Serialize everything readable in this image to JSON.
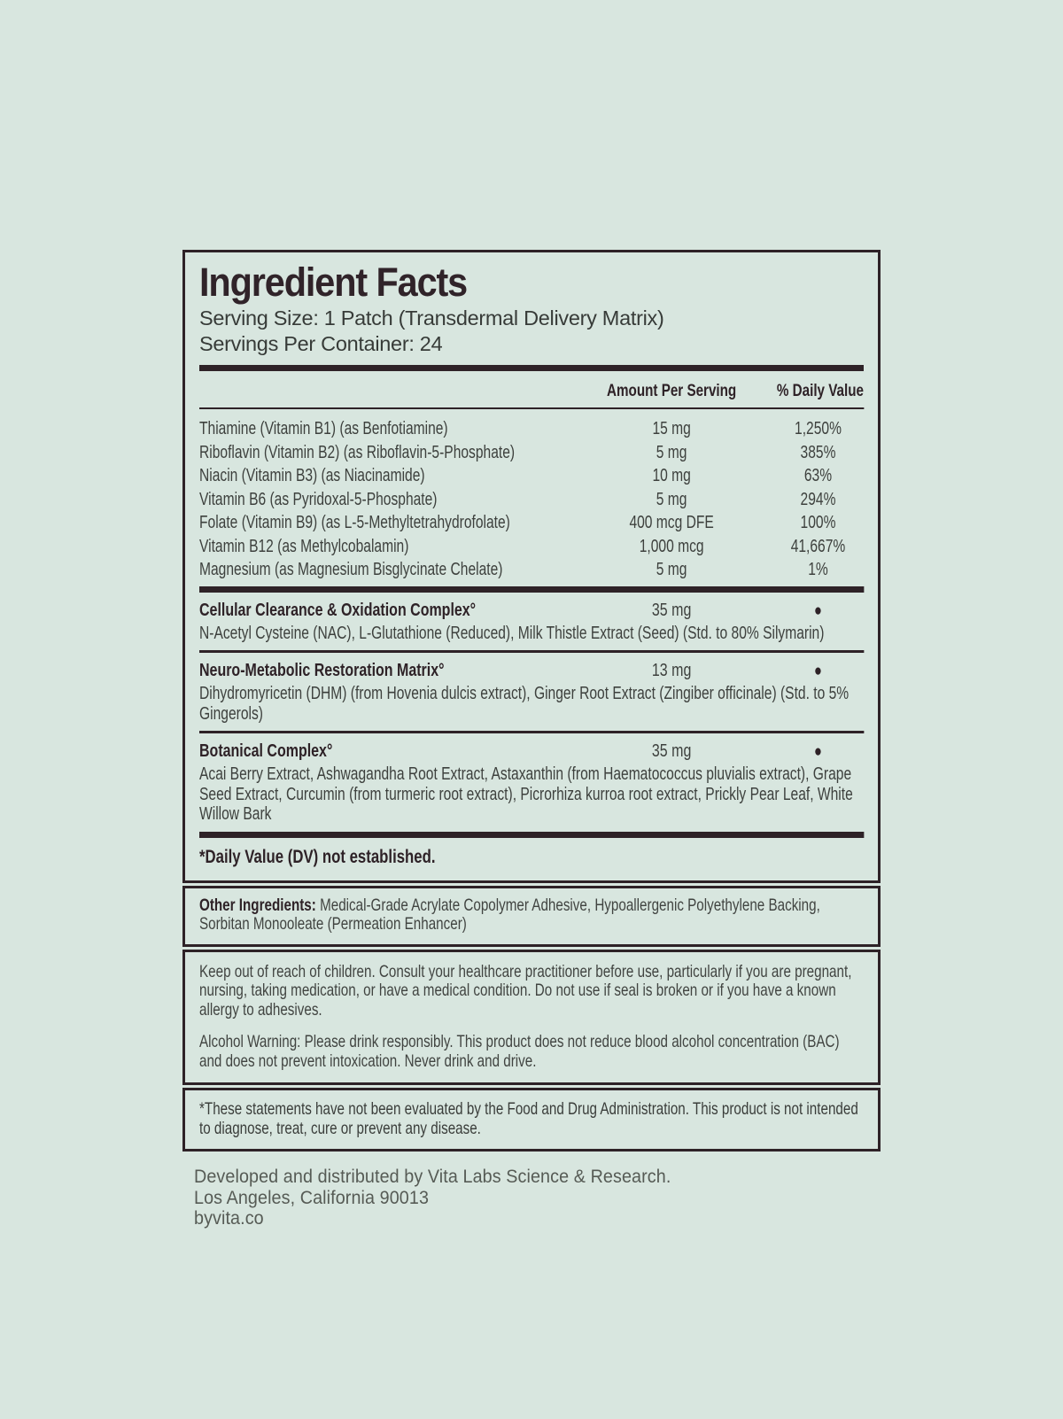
{
  "label": {
    "title": "Ingredient Facts",
    "serving_size": "Serving Size: 1 Patch (Transdermal Delivery Matrix)",
    "servings_per_container": "Servings Per Container: 24",
    "columns": {
      "amount": "Amount Per Serving",
      "dv": "% Daily Value"
    },
    "nutrients": [
      {
        "name": "Thiamine (Vitamin B1) (as Benfotiamine)",
        "amount": "15 mg",
        "dv": "1,250%"
      },
      {
        "name": "Riboflavin (Vitamin B2) (as Riboflavin-5-Phosphate)",
        "amount": "5 mg",
        "dv": "385%"
      },
      {
        "name": "Niacin (Vitamin B3) (as Niacinamide)",
        "amount": "10 mg",
        "dv": "63%"
      },
      {
        "name": "Vitamin B6 (as Pyridoxal-5-Phosphate)",
        "amount": "5 mg",
        "dv": "294%"
      },
      {
        "name": "Folate (Vitamin B9) (as L-5-Methyltetrahydrofolate)",
        "amount": "400 mcg DFE",
        "dv": "100%"
      },
      {
        "name": "Vitamin B12 (as Methylcobalamin)",
        "amount": "1,000 mcg",
        "dv": "41,667%"
      },
      {
        "name": "Magnesium (as Magnesium Bisglycinate Chelate)",
        "amount": "5 mg",
        "dv": "1%"
      }
    ],
    "complexes": [
      {
        "name": "Cellular Clearance & Oxidation Complex°",
        "amount": "35 mg",
        "dv_symbol": "●",
        "ingredients": "N-Acetyl Cysteine (NAC), L-Glutathione (Reduced), Milk Thistle Extract (Seed) (Std. to 80% Silymarin)"
      },
      {
        "name": "Neuro-Metabolic Restoration Matrix°",
        "amount": "13 mg",
        "dv_symbol": "●",
        "ingredients": "Dihydromyricetin (DHM) (from Hovenia dulcis extract), Ginger Root Extract (Zingiber officinale) (Std. to 5% Gingerols)"
      },
      {
        "name": "Botanical Complex°",
        "amount": "35 mg",
        "dv_symbol": "●",
        "ingredients": "Acai Berry Extract, Ashwagandha Root Extract, Astaxanthin (from Haematococcus pluvialis extract), Grape Seed Extract, Curcumin (from turmeric root extract), Picrorhiza kurroa root extract, Prickly Pear Leaf, White Willow Bark"
      }
    ],
    "daily_value_note": "*Daily Value (DV) not established.",
    "other_ingredients": {
      "label": "Other Ingredients:",
      "text": " Medical-Grade Acrylate Copolymer Adhesive, Hypoallergenic Polyethylene Backing, Sorbitan Monooleate (Permeation Enhancer)"
    },
    "warnings": {
      "children": "Keep out of reach of children. Consult your healthcare practitioner before use, particularly if you are pregnant, nursing, taking medication, or have a medical condition. Do not use if seal is broken or if you have a known allergy to adhesives.",
      "alcohol": "Alcohol Warning: Please drink responsibly. This product does not reduce blood alcohol concentration (BAC) and does not prevent intoxication. Never drink and drive."
    },
    "fda_disclaimer": "*These statements have not been evaluated by the Food and Drug Administration. This product is not intended to diagnose, treat, cure or prevent any disease.",
    "footer": {
      "line1": "Developed and distributed by Vita Labs Science & Research.",
      "line2": "Los Angeles, California 90013",
      "line3": "byvita.co"
    },
    "colors": {
      "background": "#d8e6df",
      "ink": "#2e2227"
    }
  }
}
